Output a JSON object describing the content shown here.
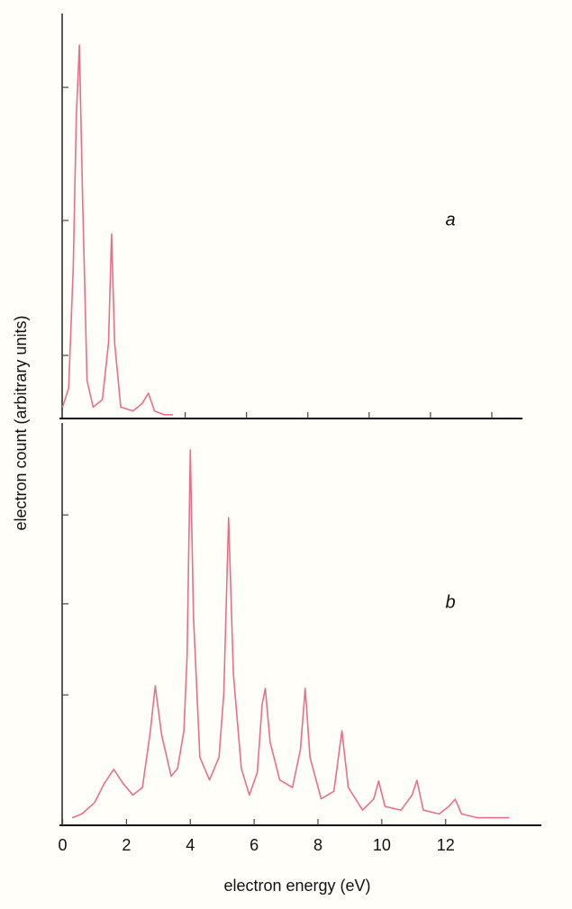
{
  "chart_data": [
    {
      "type": "line",
      "annotation": "a",
      "ylabel": "electron count (arbitrary units)",
      "xlim": [
        -0.1,
        15
      ],
      "ylim": [
        0,
        100
      ],
      "xticks": [
        4,
        6,
        8,
        10,
        12,
        14
      ],
      "yticks": [
        16.7,
        52.4,
        87.6
      ],
      "series": [
        {
          "color": "#e86f8c",
          "x": [
            0,
            0.2,
            0.35,
            0.45,
            0.55,
            0.65,
            0.8,
            1.0,
            1.3,
            1.5,
            1.6,
            1.7,
            1.9,
            2.3,
            2.6,
            2.8,
            3.0,
            3.3,
            3.6
          ],
          "values": [
            3,
            8,
            40,
            80,
            98.8,
            60,
            10,
            3,
            5,
            20,
            48.8,
            20,
            3,
            2,
            4,
            6.7,
            2,
            1,
            1
          ]
        }
      ]
    },
    {
      "type": "line",
      "annotation": "b",
      "xlabel": "electron energy (eV)",
      "xlim": [
        -0.1,
        15
      ],
      "ylim": [
        0,
        100
      ],
      "xticks": [
        0,
        2,
        4,
        6,
        8,
        10,
        12
      ],
      "yticks": [
        34.5,
        58.6,
        82.1
      ],
      "series": [
        {
          "color": "#e86f8c",
          "x": [
            0.3,
            0.6,
            1.0,
            1.3,
            1.6,
            1.9,
            2.2,
            2.5,
            2.75,
            2.9,
            3.1,
            3.4,
            3.6,
            3.8,
            3.9,
            4.0,
            4.1,
            4.3,
            4.6,
            4.9,
            5.05,
            5.2,
            5.35,
            5.6,
            5.85,
            6.1,
            6.25,
            6.35,
            6.5,
            6.8,
            7.2,
            7.45,
            7.6,
            7.75,
            8.1,
            8.5,
            8.75,
            8.95,
            9.4,
            9.75,
            9.9,
            10.1,
            10.6,
            10.95,
            11.1,
            11.3,
            11.8,
            12.1,
            12.3,
            12.5,
            13,
            14
          ],
          "values": [
            2,
            3,
            6,
            11,
            14.8,
            11,
            8,
            10,
            25,
            36.9,
            24,
            13,
            15,
            25,
            45,
            99.3,
            55,
            18,
            12,
            18,
            35,
            81.4,
            40,
            15,
            8,
            14,
            32,
            36.2,
            22,
            12,
            10,
            20,
            36.2,
            18,
            7,
            9,
            25,
            10,
            4,
            7,
            11.7,
            5,
            4,
            8,
            11.9,
            4,
            3,
            5,
            6.9,
            3,
            2,
            2
          ]
        }
      ]
    }
  ]
}
